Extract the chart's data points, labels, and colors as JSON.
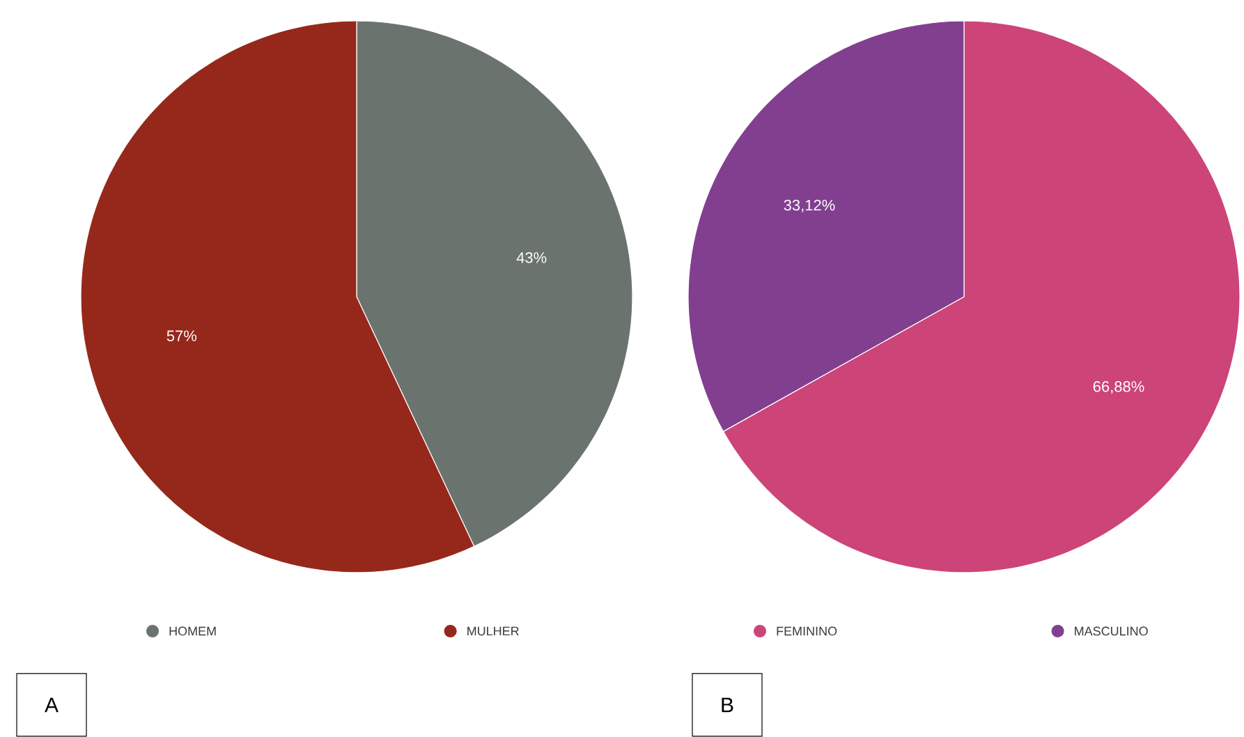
{
  "chart_data": [
    {
      "type": "pie",
      "title": "A",
      "categories": [
        "HOMEM",
        "MULHER"
      ],
      "values": [
        43,
        57
      ],
      "colors": [
        "#6b736e",
        "#96281b"
      ],
      "value_labels": [
        "43%",
        "57%"
      ],
      "legend": "bottom"
    },
    {
      "type": "pie",
      "title": "B",
      "categories": [
        "FEMININO",
        "MASCULINO"
      ],
      "values": [
        66.88,
        33.12
      ],
      "colors": [
        "#cc4478",
        "#823f8f"
      ],
      "value_labels": [
        "66,88%",
        "33,12%"
      ],
      "legend": "bottom"
    }
  ]
}
